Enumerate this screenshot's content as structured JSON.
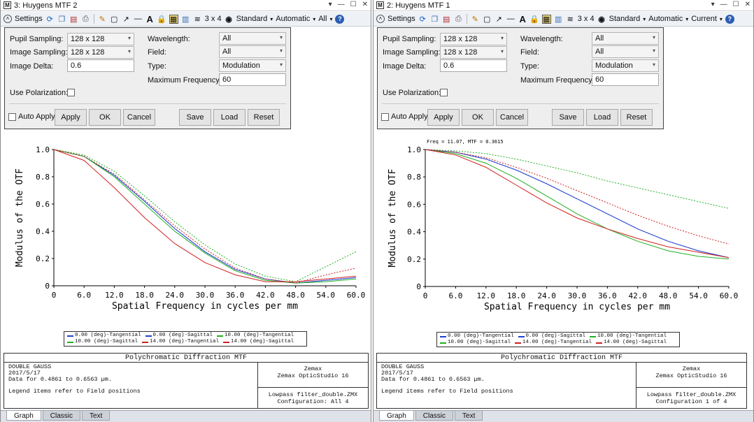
{
  "windows": [
    {
      "title": "3: Huygens MTF 2",
      "toolbar": {
        "settings": "Settings",
        "layout": "3 x 4",
        "standard": "Standard",
        "automatic": "Automatic",
        "scope": "All"
      },
      "settings": {
        "pupil_sampling_label": "Pupil Sampling:",
        "pupil_sampling": "128 x 128",
        "image_sampling_label": "Image Sampling:",
        "image_sampling": "128 x 128",
        "image_delta_label": "Image Delta:",
        "image_delta": "0.6",
        "wavelength_label": "Wavelength:",
        "wavelength": "All",
        "field_label": "Field:",
        "field": "All",
        "type_label": "Type:",
        "type": "Modulation",
        "max_freq_label": "Maximum Frequency:",
        "max_freq": "60",
        "polarization_label": "Use Polarization:",
        "auto_apply": "Auto Apply",
        "apply": "Apply",
        "ok": "OK",
        "cancel": "Cancel",
        "save": "Save",
        "load": "Load",
        "reset": "Reset"
      },
      "graph": {
        "annotation": ""
      },
      "info": {
        "title": "Polychromatic Diffraction MTF",
        "line1": "DOUBLE GAUSS",
        "line2": "2017/5/17",
        "line3": "Data for 0.4861 to 0.6563 µm.",
        "line4": "Legend items refer to Field positions",
        "company": "Zemax",
        "product": "Zemax OpticStudio 16",
        "file": "Lowpass filter_double.ZMX",
        "config": "Configuration: All 4"
      },
      "tabs": [
        "Graph",
        "Classic",
        "Text"
      ]
    },
    {
      "title": "2: Huygens MTF 1",
      "toolbar": {
        "settings": "Settings",
        "layout": "3 x 4",
        "standard": "Standard",
        "automatic": "Automatic",
        "scope": "Current"
      },
      "settings": {
        "pupil_sampling_label": "Pupil Sampling:",
        "pupil_sampling": "128 x 128",
        "image_sampling_label": "Image Sampling:",
        "image_sampling": "128 x 128",
        "image_delta_label": "Image Delta:",
        "image_delta": "0.6",
        "wavelength_label": "Wavelength:",
        "wavelength": "All",
        "field_label": "Field:",
        "field": "All",
        "type_label": "Type:",
        "type": "Modulation",
        "max_freq_label": "Maximum Frequency:",
        "max_freq": "60",
        "polarization_label": "Use Polarization:",
        "auto_apply": "Auto Apply",
        "apply": "Apply",
        "ok": "OK",
        "cancel": "Cancel",
        "save": "Save",
        "load": "Load",
        "reset": "Reset"
      },
      "graph": {
        "annotation": "Freq = 11.07, MTF = 0.3615"
      },
      "info": {
        "title": "Polychromatic Diffraction MTF",
        "line1": "DOUBLE GAUSS",
        "line2": "2017/5/17",
        "line3": "Data for 0.4861 to 0.6563 µm.",
        "line4": "Legend items refer to Field positions",
        "company": "Zemax",
        "product": "Zemax OpticStudio 16",
        "file": "Lowpass filter_double.ZMX",
        "config": "Configuration 1 of 4"
      },
      "tabs": [
        "Graph",
        "Classic",
        "Text"
      ]
    }
  ],
  "icons": [
    "refresh-icon",
    "copy-icon",
    "save-icon",
    "print-icon",
    "pencil-icon",
    "rectangle-icon",
    "arrow-icon",
    "line-icon",
    "text-icon",
    "lock-icon",
    "grid-icon",
    "layers-icon",
    "stack-icon",
    "clock-icon",
    "help-icon"
  ],
  "colors": {
    "tangential_0": "#2040d0",
    "sagittal_0": "#2040d0",
    "tangential_10": "#20b020",
    "sagittal_10": "#20b020",
    "tangential_14": "#d02020",
    "sagittal_14": "#d02020"
  },
  "chart_data": [
    {
      "type": "line",
      "xlabel": "Spatial Frequency in cycles per mm",
      "ylabel": "Modulus of the OTF",
      "xlim": [
        0,
        60
      ],
      "ylim": [
        0,
        1
      ],
      "xticks": [
        "0",
        "6.0",
        "12.0",
        "18.0",
        "24.0",
        "30.0",
        "36.0",
        "42.0",
        "48.0",
        "54.0",
        "60.0"
      ],
      "yticks": [
        "0",
        "0.2",
        "0.4",
        "0.6",
        "0.8",
        "1.0"
      ],
      "legend": [
        "0.00 (deg)-Tangential",
        "0.00 (deg)-Sagittal",
        "10.00 (deg)-Tangential",
        "10.00 (deg)-Sagittal",
        "14.00 (deg)-Tangential",
        "14.00 (deg)-Sagittal"
      ],
      "x": [
        0,
        6,
        12,
        18,
        24,
        30,
        36,
        42,
        48,
        54,
        60
      ],
      "series": [
        {
          "name": "0.00 (deg)-Tangential",
          "color": "#2040d0",
          "dash": false,
          "values": [
            1.0,
            0.95,
            0.81,
            0.62,
            0.42,
            0.25,
            0.12,
            0.05,
            0.02,
            0.04,
            0.06
          ]
        },
        {
          "name": "0.00 (deg)-Sagittal",
          "color": "#2040d0",
          "dash": true,
          "values": [
            1.0,
            0.95,
            0.81,
            0.62,
            0.42,
            0.25,
            0.12,
            0.05,
            0.02,
            0.04,
            0.06
          ]
        },
        {
          "name": "10.00 (deg)-Tangential",
          "color": "#20b020",
          "dash": false,
          "values": [
            1.0,
            0.95,
            0.8,
            0.6,
            0.4,
            0.24,
            0.11,
            0.04,
            0.02,
            0.03,
            0.05
          ]
        },
        {
          "name": "10.00 (deg)-Sagittal",
          "color": "#20b020",
          "dash": true,
          "values": [
            1.0,
            0.96,
            0.84,
            0.66,
            0.47,
            0.3,
            0.16,
            0.07,
            0.03,
            0.14,
            0.25
          ]
        },
        {
          "name": "14.00 (deg)-Tangential",
          "color": "#d02020",
          "dash": false,
          "values": [
            1.0,
            0.92,
            0.72,
            0.5,
            0.31,
            0.17,
            0.08,
            0.03,
            0.03,
            0.05,
            0.07
          ]
        },
        {
          "name": "14.00 (deg)-Sagittal",
          "color": "#d02020",
          "dash": true,
          "values": [
            1.0,
            0.95,
            0.82,
            0.63,
            0.44,
            0.27,
            0.13,
            0.05,
            0.02,
            0.08,
            0.13
          ]
        }
      ]
    },
    {
      "type": "line",
      "xlabel": "Spatial Frequency in cycles per mm",
      "ylabel": "Modulus of the OTF",
      "xlim": [
        0,
        60
      ],
      "ylim": [
        0,
        1
      ],
      "xticks": [
        "0",
        "6.0",
        "12.0",
        "18.0",
        "24.0",
        "30.0",
        "36.0",
        "42.0",
        "48.0",
        "54.0",
        "60.0"
      ],
      "yticks": [
        "0",
        "0.2",
        "0.4",
        "0.6",
        "0.8",
        "1.0"
      ],
      "legend": [
        "0.00 (deg)-Tangential",
        "0.00 (deg)-Sagittal",
        "10.00 (deg)-Tangential",
        "10.00 (deg)-Sagittal",
        "14.00 (deg)-Tangential",
        "14.00 (deg)-Sagittal"
      ],
      "x": [
        0,
        6,
        12,
        18,
        24,
        30,
        36,
        42,
        48,
        54,
        60
      ],
      "series": [
        {
          "name": "0.00 (deg)-Tangential",
          "color": "#2040d0",
          "dash": false,
          "values": [
            1.0,
            0.98,
            0.93,
            0.85,
            0.75,
            0.64,
            0.53,
            0.42,
            0.33,
            0.26,
            0.21
          ]
        },
        {
          "name": "0.00 (deg)-Sagittal",
          "color": "#2040d0",
          "dash": true,
          "values": [
            1.0,
            0.98,
            0.93,
            0.85,
            0.75,
            0.64,
            0.53,
            0.42,
            0.33,
            0.26,
            0.21
          ]
        },
        {
          "name": "10.00 (deg)-Tangential",
          "color": "#20b020",
          "dash": false,
          "values": [
            1.0,
            0.97,
            0.9,
            0.79,
            0.66,
            0.53,
            0.42,
            0.33,
            0.26,
            0.22,
            0.2
          ]
        },
        {
          "name": "10.00 (deg)-Sagittal",
          "color": "#20b020",
          "dash": true,
          "values": [
            1.0,
            0.99,
            0.97,
            0.93,
            0.88,
            0.83,
            0.77,
            0.72,
            0.67,
            0.62,
            0.57
          ]
        },
        {
          "name": "14.00 (deg)-Tangential",
          "color": "#d02020",
          "dash": false,
          "values": [
            1.0,
            0.96,
            0.87,
            0.74,
            0.61,
            0.5,
            0.42,
            0.35,
            0.29,
            0.25,
            0.21
          ]
        },
        {
          "name": "14.00 (deg)-Sagittal",
          "color": "#d02020",
          "dash": true,
          "values": [
            1.0,
            0.98,
            0.94,
            0.87,
            0.79,
            0.7,
            0.61,
            0.52,
            0.44,
            0.37,
            0.31
          ]
        }
      ]
    }
  ]
}
